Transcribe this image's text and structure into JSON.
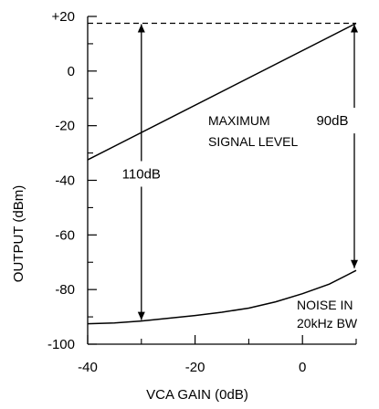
{
  "chart_data": {
    "type": "line",
    "title": "",
    "xlabel": "VCA GAIN (0dB)",
    "ylabel": "OUTPUT (dBm)",
    "xlim": [
      -40,
      10
    ],
    "ylim": [
      -100,
      20
    ],
    "x_ticks": [
      -40,
      -20,
      0
    ],
    "y_ticks": [
      20,
      0,
      -20,
      -40,
      -60,
      -80,
      -100
    ],
    "y_tick_labels": [
      "+20",
      "0",
      "-20",
      "-40",
      "-60",
      "-80",
      "-100"
    ],
    "x_tick_labels": [
      "-40",
      "-20",
      "0"
    ],
    "grid": false,
    "series": [
      {
        "name": "MAXIMUM SIGNAL LEVEL",
        "x": [
          -40,
          10
        ],
        "y": [
          -32.5,
          17.5
        ]
      },
      {
        "name": "NOISE IN 20kHz BW",
        "x": [
          -40,
          -35,
          -30,
          -25,
          -20,
          -15,
          -10,
          -5,
          0,
          5,
          10
        ],
        "y": [
          -92.5,
          -92.2,
          -91.5,
          -90.5,
          -89.5,
          -88.3,
          -86.8,
          -84.5,
          -81.5,
          -78,
          -73
        ]
      }
    ],
    "reference_line": {
      "y": 17.5,
      "x_from": -40,
      "x_to": 10,
      "style": "dashed"
    },
    "annotations": [
      {
        "text": "110dB",
        "x": -30,
        "y_from": 17.5,
        "y_to": -91.5
      },
      {
        "text": "90dB",
        "x": 10,
        "y_from": 17.5,
        "y_to": -72.5
      }
    ],
    "series_labels": {
      "signal_line1": "MAXIMUM",
      "signal_line2": "SIGNAL LEVEL",
      "noise_line1": "NOISE IN",
      "noise_line2": "20kHz BW"
    }
  }
}
